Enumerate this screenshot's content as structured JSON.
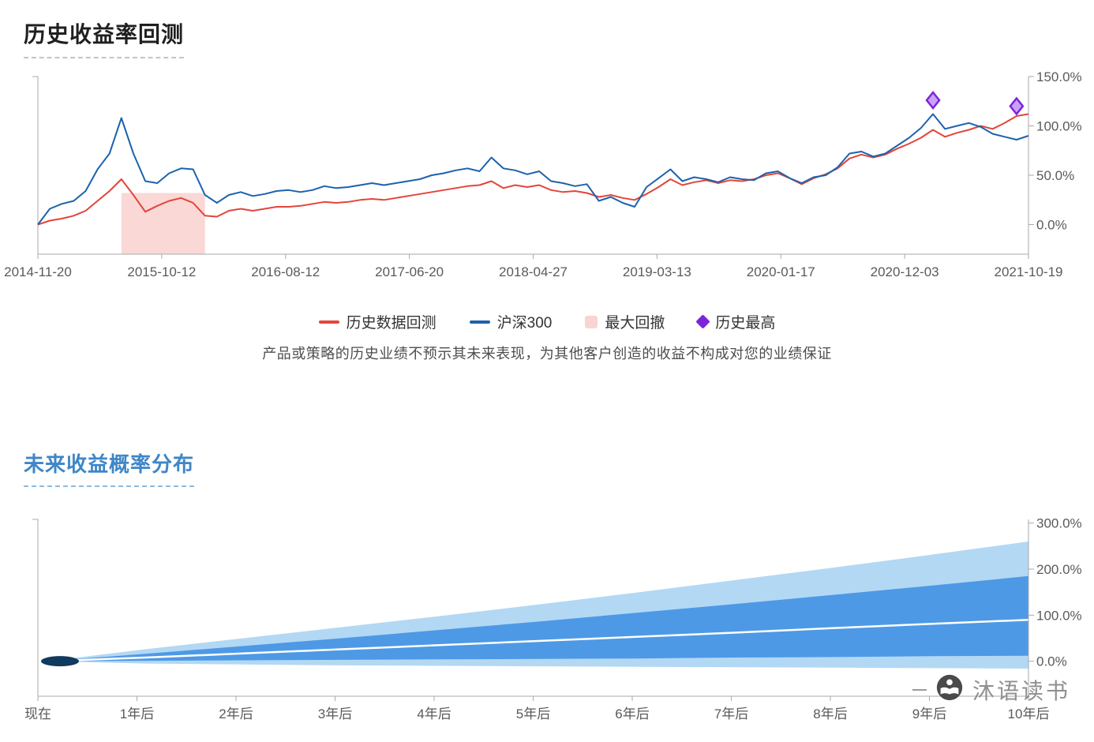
{
  "section1": {
    "title": "历史收益率回测",
    "legend": [
      {
        "label": "历史数据回测",
        "marker": "line",
        "color": "#e3453a"
      },
      {
        "label": "沪深300",
        "marker": "line",
        "color": "#1c62ae"
      },
      {
        "label": "最大回撤",
        "marker": "area",
        "color": "#f8d5d3"
      },
      {
        "label": "历史最高",
        "marker": "diamond",
        "color": "#7e23dd"
      }
    ],
    "disclaimer": "产品或策略的历史业绩不预示其未来表现，为其他客户创造的收益不构成对您的业绩保证"
  },
  "section2": {
    "title": "未来收益概率分布"
  },
  "watermark": {
    "text": "沐语读书"
  },
  "colors": {
    "backtest_red": "#e3453a",
    "index_blue": "#1c62ae",
    "drawdown_pink": "#f9d8d6",
    "high_purple": "#7e23dd",
    "band_outer_blue": "#b3d8f4",
    "band_inner_blue": "#4d99e6",
    "axis_gray": "#aaaaaa",
    "label_gray": "#5a5a5a"
  },
  "chart_data": [
    {
      "type": "line",
      "title": "历史收益率回测",
      "x_tick_labels": [
        "2014-11-20",
        "2015-10-12",
        "2016-08-12",
        "2017-06-20",
        "2018-04-27",
        "2019-03-13",
        "2020-01-17",
        "2020-12-03",
        "2021-10-19"
      ],
      "y_tick_labels": [
        "150.0%",
        "100.0%",
        "50.0%",
        "0.0%"
      ],
      "y_tick_values": [
        150,
        100,
        50,
        0
      ],
      "ylim": [
        -30,
        150
      ],
      "x_unit": "monthly points from 2014-11 to 2021-10",
      "series": [
        {
          "name": "历史数据回测",
          "color": "#e3453a",
          "values": [
            0,
            4,
            6,
            9,
            14,
            24,
            34,
            46,
            30,
            13,
            19,
            24,
            27,
            22,
            9,
            8,
            14,
            16,
            14,
            16,
            18,
            18,
            19,
            21,
            23,
            22,
            23,
            25,
            26,
            25,
            27,
            29,
            31,
            33,
            35,
            37,
            39,
            40,
            44,
            37,
            40,
            38,
            40,
            35,
            33,
            34,
            32,
            28,
            30,
            27,
            25,
            31,
            38,
            46,
            40,
            43,
            45,
            42,
            45,
            44,
            46,
            50,
            52,
            47,
            41,
            47,
            51,
            57,
            67,
            71,
            68,
            71,
            77,
            82,
            88,
            96,
            89,
            93,
            96,
            100,
            97,
            103,
            110,
            112
          ]
        },
        {
          "name": "沪深300",
          "color": "#1c62ae",
          "values": [
            0,
            16,
            21,
            24,
            34,
            56,
            72,
            108,
            72,
            44,
            42,
            52,
            57,
            56,
            30,
            22,
            30,
            33,
            29,
            31,
            34,
            35,
            33,
            35,
            39,
            37,
            38,
            40,
            42,
            40,
            42,
            44,
            46,
            50,
            52,
            55,
            57,
            54,
            68,
            57,
            55,
            51,
            54,
            44,
            42,
            39,
            41,
            24,
            28,
            22,
            18,
            38,
            47,
            56,
            44,
            48,
            46,
            43,
            48,
            46,
            45,
            52,
            54,
            47,
            42,
            48,
            50,
            58,
            72,
            74,
            69,
            72,
            80,
            88,
            98,
            112,
            97,
            100,
            103,
            99,
            92,
            89,
            86,
            90
          ]
        }
      ],
      "drawdown_region": {
        "name": "最大回撤",
        "color": "#f9d8d6",
        "start_index": 7,
        "end_index": 14,
        "top_value": 32
      },
      "high_markers": {
        "name": "历史最高",
        "color": "#7e23dd",
        "points": [
          {
            "index": 75,
            "value": 126
          },
          {
            "index": 82,
            "value": 120
          }
        ]
      }
    },
    {
      "type": "area",
      "title": "未来收益概率分布",
      "x_tick_labels": [
        "现在",
        "1年后",
        "2年后",
        "3年后",
        "4年后",
        "5年后",
        "6年后",
        "7年后",
        "8年后",
        "9年后",
        "10年后"
      ],
      "y_tick_labels": [
        "300.0%",
        "200.0%",
        "100.0%",
        "0.0%"
      ],
      "y_tick_values": [
        300,
        200,
        100,
        0
      ],
      "ylim": [
        -76,
        308
      ],
      "years": [
        0,
        1,
        2,
        3,
        4,
        5,
        6,
        7,
        8,
        9,
        10
      ],
      "bands": {
        "outer": {
          "color": "#b3d8f4",
          "upper": [
            0,
            26,
            50,
            74,
            98,
            123,
            149,
            176,
            203,
            231,
            260
          ],
          "lower": [
            0,
            -5,
            -7,
            -9,
            -10,
            -11,
            -12,
            -13,
            -14,
            -15,
            -16
          ]
        },
        "inner": {
          "color": "#4d99e6",
          "upper": [
            0,
            16,
            33,
            50,
            68,
            86,
            105,
            124,
            144,
            164,
            185
          ],
          "lower": [
            0,
            1,
            2,
            3,
            4,
            5,
            6,
            8,
            9,
            11,
            12
          ]
        }
      },
      "median": {
        "color": "#ffffff",
        "values": [
          0,
          8,
          17,
          26,
          35,
          44,
          53,
          62,
          72,
          81,
          90
        ]
      },
      "start_color": "#123a5e"
    }
  ]
}
